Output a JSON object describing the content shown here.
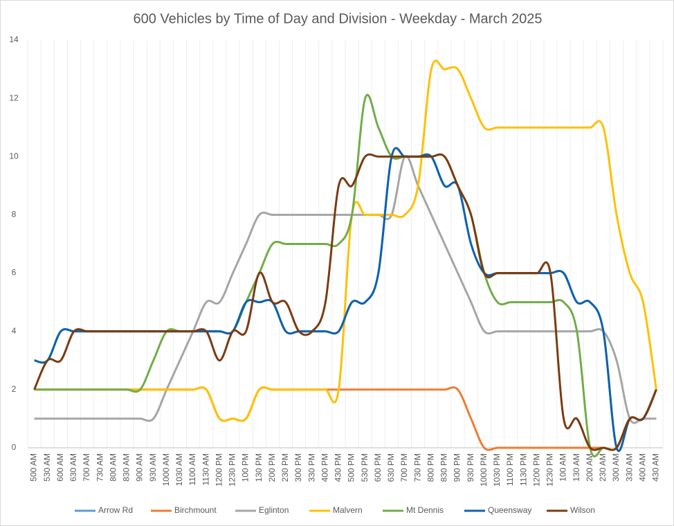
{
  "chart_data": {
    "type": "line",
    "title": "600 Vehicles by Time of Day and Division - Weekday - March 2025",
    "categories": [
      "500 AM",
      "530 AM",
      "600 AM",
      "630 AM",
      "700 AM",
      "730 AM",
      "800 AM",
      "830 AM",
      "900 AM",
      "930 AM",
      "1000 AM",
      "1030 AM",
      "1100 AM",
      "1130 AM",
      "1200 PM",
      "1230 PM",
      "100 PM",
      "130 PM",
      "200 PM",
      "230 PM",
      "300 PM",
      "330 PM",
      "400 PM",
      "430 PM",
      "500 PM",
      "530 PM",
      "600 PM",
      "630 PM",
      "700 PM",
      "730 PM",
      "800 PM",
      "830 PM",
      "900 PM",
      "930 PM",
      "1000 PM",
      "1030 PM",
      "1100 PM",
      "1130 PM",
      "1200 PM",
      "1230 PM",
      "100 AM",
      "130 AM",
      "200 AM",
      "230 AM",
      "300 AM",
      "330 AM",
      "400 AM",
      "430 AM"
    ],
    "series": [
      {
        "name": "Arrow Rd",
        "color": "#5b9bd5",
        "values": [
          3,
          3,
          4,
          4,
          4,
          4,
          4,
          4,
          4,
          4,
          4,
          4,
          4,
          4,
          4,
          4,
          5,
          5,
          5,
          4,
          4,
          4,
          4,
          4,
          5,
          5,
          6,
          10,
          10,
          10,
          10,
          9,
          9,
          7,
          6,
          6,
          6,
          6,
          6,
          6,
          6,
          5,
          5,
          4,
          0,
          1,
          1,
          2
        ]
      },
      {
        "name": "Birchmount",
        "color": "#ed7d31",
        "values": [
          2,
          2,
          2,
          2,
          2,
          2,
          2,
          2,
          2,
          2,
          2,
          2,
          2,
          2,
          1,
          1,
          1,
          2,
          2,
          2,
          2,
          2,
          2,
          2,
          2,
          2,
          2,
          2,
          2,
          2,
          2,
          2,
          2,
          1,
          0,
          0,
          0,
          0,
          0,
          0,
          0,
          0,
          0,
          0,
          0,
          1,
          1,
          2
        ]
      },
      {
        "name": "Eglinton",
        "color": "#a5a5a5",
        "values": [
          1,
          1,
          1,
          1,
          1,
          1,
          1,
          1,
          1,
          1,
          2,
          3,
          4,
          5,
          5,
          6,
          7,
          8,
          8,
          8,
          8,
          8,
          8,
          8,
          8,
          8,
          8,
          8,
          10,
          9,
          8,
          7,
          6,
          5,
          4,
          4,
          4,
          4,
          4,
          4,
          4,
          4,
          4,
          4,
          3,
          1,
          1,
          1
        ]
      },
      {
        "name": "Malvern",
        "color": "#ffc000",
        "values": [
          2,
          2,
          2,
          2,
          2,
          2,
          2,
          2,
          2,
          2,
          2,
          2,
          2,
          2,
          1,
          1,
          1,
          2,
          2,
          2,
          2,
          2,
          2,
          2,
          8,
          8,
          8,
          8,
          8,
          9,
          13,
          13,
          13,
          12,
          11,
          11,
          11,
          11,
          11,
          11,
          11,
          11,
          11,
          11,
          8,
          6,
          5,
          2
        ]
      },
      {
        "name": "Mt Dennis",
        "color": "#70ad47",
        "values": [
          2,
          2,
          2,
          2,
          2,
          2,
          2,
          2,
          2,
          3,
          4,
          4,
          4,
          4,
          4,
          4,
          5,
          6,
          7,
          7,
          7,
          7,
          7,
          7,
          8,
          12,
          11,
          10,
          10,
          10,
          10,
          10,
          9,
          8,
          6,
          5,
          5,
          5,
          5,
          5,
          5,
          4,
          0,
          0,
          0,
          1,
          1,
          2
        ]
      },
      {
        "name": "Queensway",
        "color": "#0f62ac",
        "values": [
          3,
          3,
          4,
          4,
          4,
          4,
          4,
          4,
          4,
          4,
          4,
          4,
          4,
          4,
          4,
          4,
          5,
          5,
          5,
          4,
          4,
          4,
          4,
          4,
          5,
          5,
          6,
          10,
          10,
          10,
          10,
          9,
          9,
          7,
          6,
          6,
          6,
          6,
          6,
          6,
          6,
          5,
          5,
          4,
          0,
          1,
          1,
          2
        ]
      },
      {
        "name": "Wilson",
        "color": "#7b3b12",
        "values": [
          2,
          3,
          3,
          4,
          4,
          4,
          4,
          4,
          4,
          4,
          4,
          4,
          4,
          4,
          3,
          4,
          4,
          6,
          5,
          5,
          4,
          4,
          5,
          9,
          9,
          10,
          10,
          10,
          10,
          10,
          10,
          10,
          9,
          8,
          6,
          6,
          6,
          6,
          6,
          6,
          1,
          1,
          0,
          0,
          0,
          1,
          1,
          2
        ]
      }
    ],
    "ylim": [
      0,
      14
    ],
    "yticks": [
      0,
      2,
      4,
      6,
      8,
      10,
      12,
      14
    ],
    "smooth": true,
    "legend": "bottom"
  }
}
